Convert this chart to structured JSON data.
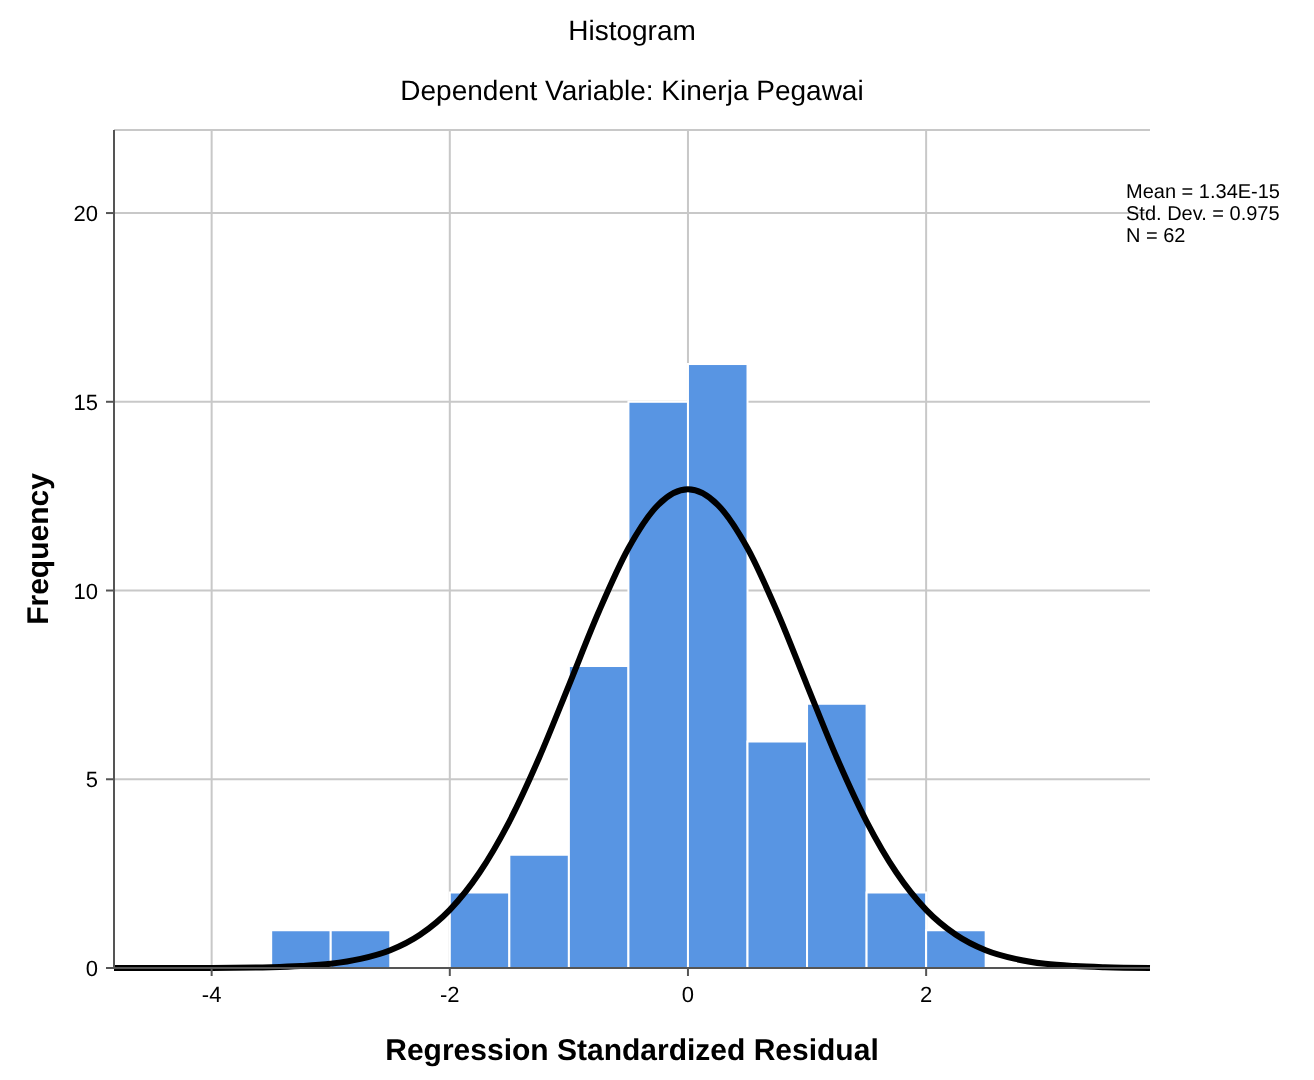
{
  "chart_data": {
    "type": "histogram",
    "title": "Histogram",
    "subtitle": "Dependent Variable: Kinerja Pegawai",
    "xlabel": "Regression Standardized Residual",
    "ylabel": "Frequency",
    "annotations": [
      "Mean = 1.34E-15",
      "Std. Dev. = 0.975",
      "N = 62"
    ],
    "bins": [
      -3.5,
      -3,
      -2.5,
      -2,
      -1.5,
      -1,
      -0.5,
      0,
      0.5,
      1,
      1.5,
      2,
      2.5
    ],
    "series": [
      {
        "color": "#5895e3",
        "values": [
          1,
          1,
          0,
          2,
          3,
          8,
          15,
          16,
          6,
          7,
          2,
          1
        ]
      },
      {
        "type": "line",
        "color": "#000000",
        "x": [
          -4.82,
          -4,
          -3.5,
          -3.25,
          -3,
          -2.75,
          -2.5,
          -2.25,
          -2,
          -1.75,
          -1.5,
          -1.25,
          -1,
          -0.75,
          -0.5,
          -0.25,
          0,
          0.25,
          0.5,
          0.75,
          1,
          1.25,
          1.5,
          1.75,
          2,
          2.25,
          2.5,
          2.75,
          3,
          3.25,
          3.5,
          3.88
        ],
        "values": [
          0,
          0,
          0.02,
          0.05,
          0.11,
          0.24,
          0.47,
          0.88,
          1.54,
          2.53,
          3.88,
          5.57,
          7.49,
          9.43,
          11.12,
          12.27,
          12.68,
          12.27,
          11.12,
          9.43,
          7.49,
          5.57,
          3.88,
          2.53,
          1.54,
          0.88,
          0.47,
          0.24,
          0.11,
          0.05,
          0.02,
          0
        ]
      }
    ],
    "xlim": [
      -4.82,
      3.88
    ],
    "xticks": [
      -4,
      -2,
      0,
      2
    ],
    "ylim": [
      0,
      22.2
    ],
    "yticks": [
      0,
      5,
      10,
      15,
      20
    ],
    "grid": true,
    "marker": "none",
    "line_style": "solid"
  }
}
